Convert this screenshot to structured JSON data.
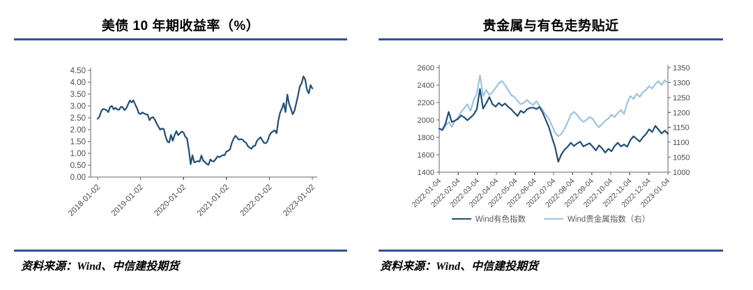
{
  "panels": [
    {
      "title": "美债 10 年期收益率（%）",
      "source": "资料来源：Wind、中信建投期货"
    },
    {
      "title": "贵金属与有色走势贴近",
      "source": "资料来源：Wind、中信建投期货"
    }
  ],
  "colors": {
    "divider": "#2F5496",
    "axis": "#666666",
    "tick_label": "#4d4d4d",
    "dark_line": "#1F4E79",
    "light_line": "#9DC3E6"
  },
  "chart_data": [
    {
      "type": "line",
      "title": "美债 10 年期收益率（%）",
      "xlabel": "",
      "ylabel": "",
      "grid": false,
      "legend_position": "none",
      "ylim": [
        0,
        4.5
      ],
      "y_tick_labels": [
        "4.50",
        "4.00",
        "3.50",
        "3.00",
        "2.50",
        "2.00",
        "1.50",
        "1.00",
        "0.50",
        "0.00"
      ],
      "x_tick_labels": [
        "2018-01-02",
        "2019-01-02",
        "2020-01-02",
        "2021-01-02",
        "2022-01-02",
        "2023-01-02"
      ],
      "series": [
        {
          "name": "美债10年期收益率(%)",
          "color": "#1F4E79",
          "values": [
            2.46,
            2.55,
            2.77,
            2.87,
            2.86,
            2.82,
            2.74,
            2.96,
            3.0,
            2.86,
            2.92,
            2.85,
            2.84,
            2.96,
            2.95,
            2.82,
            2.9,
            3.06,
            3.23,
            3.15,
            3.24,
            3.06,
            2.91,
            2.69,
            2.66,
            2.73,
            2.68,
            2.65,
            2.63,
            2.4,
            2.5,
            2.53,
            2.42,
            2.26,
            2.12,
            2.0,
            2.05,
            2.02,
            1.71,
            1.5,
            1.46,
            1.78,
            1.53,
            1.77,
            1.94,
            1.77,
            1.84,
            1.92,
            1.88,
            1.7,
            1.63,
            1.13,
            0.54,
            0.92,
            0.62,
            0.64,
            0.68,
            0.65,
            0.91,
            0.69,
            0.63,
            0.55,
            0.52,
            0.74,
            0.67,
            0.66,
            0.76,
            0.87,
            0.84,
            0.88,
            0.93,
            0.92,
            1.08,
            1.11,
            1.17,
            1.44,
            1.62,
            1.74,
            1.66,
            1.58,
            1.6,
            1.58,
            1.49,
            1.45,
            1.3,
            1.24,
            1.19,
            1.31,
            1.32,
            1.52,
            1.61,
            1.68,
            1.56,
            1.44,
            1.43,
            1.52,
            1.76,
            1.87,
            1.93,
            1.97,
            1.85,
            2.38,
            2.72,
            2.89,
            3.12,
            2.74,
            3.48,
            3.09,
            2.88,
            2.65,
            2.79,
            3.11,
            3.45,
            3.83,
            3.95,
            4.25,
            4.12,
            3.68,
            3.53,
            3.88,
            3.74
          ]
        }
      ]
    },
    {
      "type": "line",
      "title": "贵金属与有色走势贴近",
      "xlabel": "",
      "ylabel": "",
      "grid": false,
      "legend_position": "bottom",
      "ylim_left": [
        1400,
        2600
      ],
      "ylim_right": [
        1000,
        1350
      ],
      "y_tick_labels_left": [
        "2600",
        "2400",
        "2200",
        "2000",
        "1800",
        "1600",
        "1400"
      ],
      "y_tick_labels_right": [
        "1350",
        "1300",
        "1250",
        "1200",
        "1150",
        "1100",
        "1050",
        "1000"
      ],
      "x_tick_labels": [
        "2022-01-04",
        "2022-02-04",
        "2022-03-04",
        "2022-04-04",
        "2022-05-04",
        "2022-06-04",
        "2022-07-04",
        "2022-08-04",
        "2022-09-04",
        "2022-10-04",
        "2022-11-04",
        "2022-12-04",
        "2023-01-04"
      ],
      "series": [
        {
          "name": "Wind有色指数",
          "axis": "left",
          "color": "#1F4E79",
          "values": [
            1900,
            1885,
            1958,
            2092,
            1975,
            1992,
            2012,
            2052,
            2028,
            1995,
            2028,
            2062,
            2125,
            2355,
            2130,
            2192,
            2262,
            2180,
            2152,
            2195,
            2162,
            2188,
            2150,
            2122,
            2082,
            2045,
            2105,
            2082,
            2122,
            2138,
            2142,
            2125,
            2148,
            2085,
            2000,
            1915,
            1795,
            1688,
            1520,
            1605,
            1658,
            1692,
            1738,
            1700,
            1730,
            1750,
            1695,
            1715,
            1732,
            1692,
            1650,
            1708,
            1672,
            1625,
            1668,
            1640,
            1702,
            1738,
            1695,
            1718,
            1692,
            1768,
            1812,
            1782,
            1752,
            1800,
            1838,
            1892,
            1862,
            1932,
            1888,
            1845,
            1878,
            1842
          ]
        },
        {
          "name": "Wind贵金属指数（右）",
          "axis": "right",
          "color": "#9DC3E6",
          "values": [
            1148,
            1140,
            1155,
            1168,
            1152,
            1172,
            1182,
            1202,
            1215,
            1228,
            1205,
            1242,
            1262,
            1324,
            1255,
            1275,
            1258,
            1268,
            1282,
            1298,
            1305,
            1292,
            1275,
            1258,
            1252,
            1238,
            1228,
            1232,
            1242,
            1232,
            1225,
            1238,
            1222,
            1208,
            1192,
            1178,
            1155,
            1132,
            1120,
            1128,
            1145,
            1168,
            1192,
            1202,
            1192,
            1178,
            1168,
            1175,
            1185,
            1178,
            1162,
            1150,
            1162,
            1172,
            1180,
            1192,
            1185,
            1198,
            1208,
            1195,
            1232,
            1255,
            1245,
            1262,
            1252,
            1268,
            1275,
            1288,
            1280,
            1295,
            1305,
            1292,
            1308,
            1298
          ]
        }
      ]
    }
  ]
}
